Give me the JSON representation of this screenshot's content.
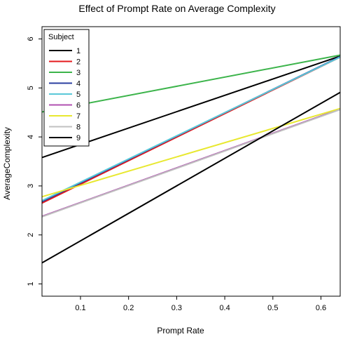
{
  "chart_data": {
    "type": "line",
    "title": "Effect of Prompt Rate on Average Complexity",
    "xlabel": "Prompt Rate",
    "ylabel": "AverageComplexity",
    "xlim": [
      0.02,
      0.64
    ],
    "ylim": [
      0.75,
      6.25
    ],
    "x_ticks": [
      0.1,
      0.2,
      0.3,
      0.4,
      0.5,
      0.6
    ],
    "x_tick_labels": [
      "0.1",
      "0.2",
      "0.3",
      "0.4",
      "0.5",
      "0.6"
    ],
    "y_ticks": [
      1,
      2,
      3,
      4,
      5,
      6
    ],
    "y_tick_labels": [
      "1",
      "2",
      "3",
      "4",
      "5",
      "6"
    ],
    "grid": false,
    "legend": {
      "title": "Subject",
      "position": "top-left"
    },
    "series": [
      {
        "name": "1",
        "color": "#000000",
        "x": [
          0.02,
          0.64
        ],
        "y": [
          3.58,
          5.65
        ]
      },
      {
        "name": "2",
        "color": "#e41a1c",
        "x": [
          0.02,
          0.64
        ],
        "y": [
          2.65,
          5.63
        ]
      },
      {
        "name": "3",
        "color": "#3cb44b",
        "x": [
          0.02,
          0.64
        ],
        "y": [
          4.51,
          5.67
        ]
      },
      {
        "name": "4",
        "color": "#2b3fa0",
        "x": [
          0.02,
          0.64
        ],
        "y": [
          2.68,
          5.64
        ]
      },
      {
        "name": "5",
        "color": "#5ac8d8",
        "x": [
          0.02,
          0.64
        ],
        "y": [
          2.7,
          5.63
        ]
      },
      {
        "name": "6",
        "color": "#b050b0",
        "x": [
          0.02,
          0.64
        ],
        "y": [
          2.38,
          4.57
        ]
      },
      {
        "name": "7",
        "color": "#e8e830",
        "x": [
          0.02,
          0.64
        ],
        "y": [
          2.78,
          4.58
        ]
      },
      {
        "name": "8",
        "color": "#c0c0c0",
        "x": [
          0.02,
          0.64
        ],
        "y": [
          2.37,
          4.56
        ]
      },
      {
        "name": "9",
        "color": "#000000",
        "x": [
          0.02,
          0.64
        ],
        "y": [
          1.43,
          4.91
        ]
      }
    ]
  }
}
